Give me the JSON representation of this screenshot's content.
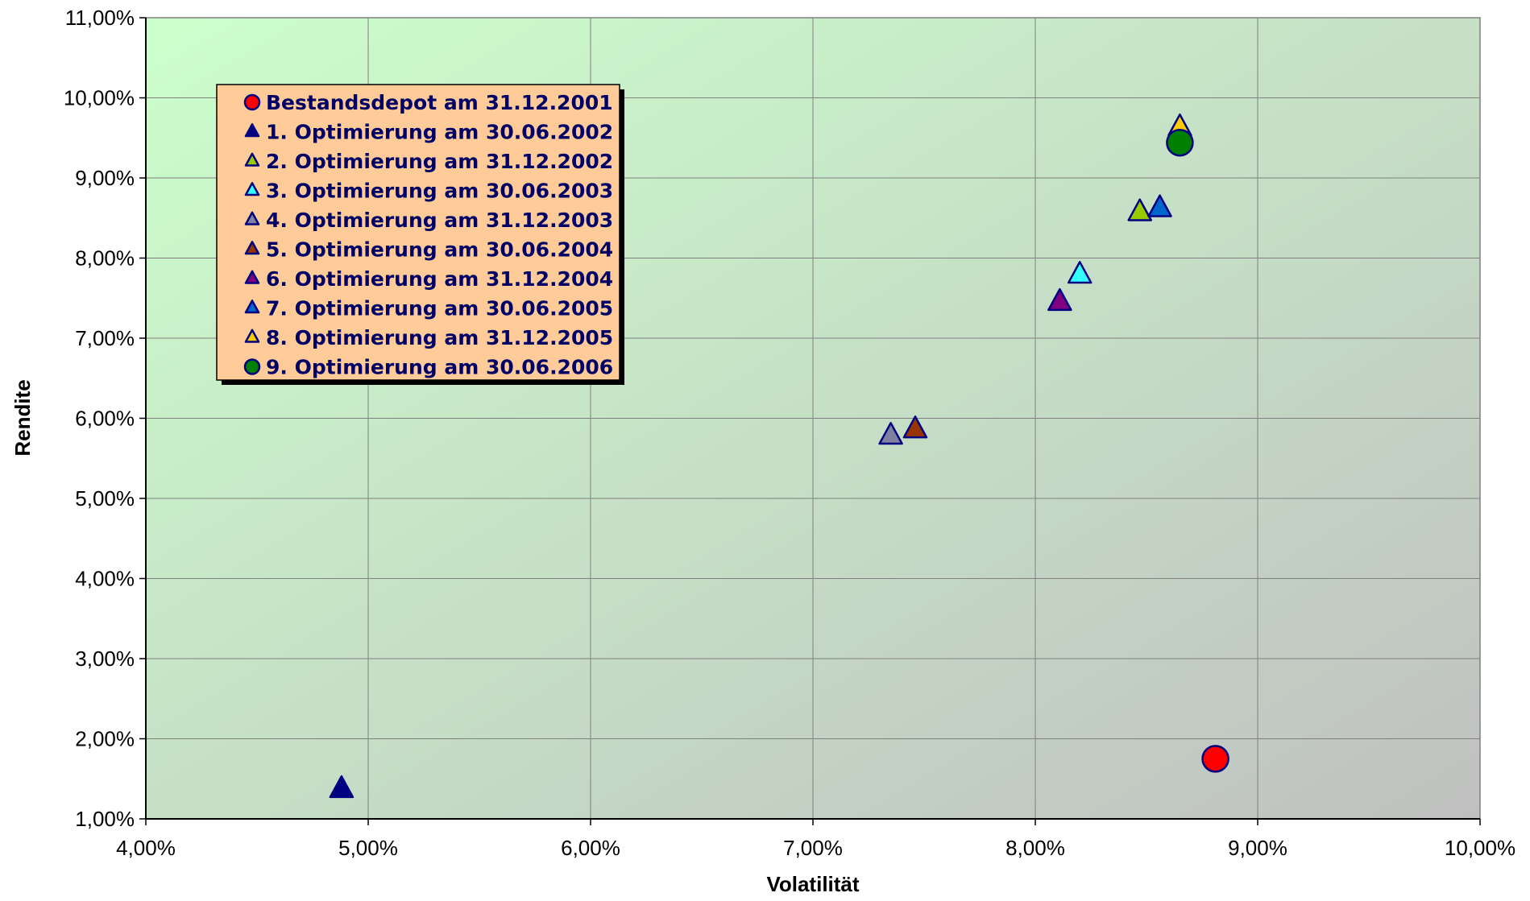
{
  "chart_data": {
    "type": "scatter",
    "xlabel": "Volatilität",
    "ylabel": "Rendite",
    "xlim": [
      0.04,
      0.1
    ],
    "ylim": [
      0.01,
      0.11
    ],
    "x_ticks": [
      "4,00%",
      "5,00%",
      "6,00%",
      "7,00%",
      "8,00%",
      "9,00%",
      "10,00%"
    ],
    "y_ticks": [
      "1,00%",
      "2,00%",
      "3,00%",
      "4,00%",
      "5,00%",
      "6,00%",
      "7,00%",
      "8,00%",
      "9,00%",
      "10,00%",
      "11,00%"
    ],
    "grid": true,
    "legend_position": "top-left",
    "series": [
      {
        "name": "Bestandsdepot am 31.12.2001",
        "marker": "circle",
        "color": "#ff0000",
        "x": 0.0881,
        "y": 0.0175
      },
      {
        "name": "1. Optimierung am 30.06.2002",
        "marker": "triangle",
        "color": "#000080",
        "x": 0.0488,
        "y": 0.0137
      },
      {
        "name": "2. Optimierung am 31.12.2002",
        "marker": "triangle",
        "color": "#99cc00",
        "x": 0.0847,
        "y": 0.0857
      },
      {
        "name": "3. Optimierung am 30.06.2003",
        "marker": "triangle",
        "color": "#33ffff",
        "x": 0.082,
        "y": 0.0779
      },
      {
        "name": "4. Optimierung am 31.12.2003",
        "marker": "triangle",
        "color": "#8080a0",
        "x": 0.0735,
        "y": 0.0578
      },
      {
        "name": "5. Optimierung am 30.06.2004",
        "marker": "triangle",
        "color": "#993300",
        "x": 0.0746,
        "y": 0.0586
      },
      {
        "name": "6. Optimierung am 31.12.2004",
        "marker": "triangle",
        "color": "#800080",
        "x": 0.0811,
        "y": 0.0745
      },
      {
        "name": "7. Optimierung am 30.06.2005",
        "marker": "triangle",
        "color": "#0066cc",
        "x": 0.0856,
        "y": 0.0862
      },
      {
        "name": "8. Optimierung am 31.12.2005",
        "marker": "triangle",
        "color": "#ffcc00",
        "x": 0.0865,
        "y": 0.0963
      },
      {
        "name": "9. Optimierung am 30.06.2006",
        "marker": "circle",
        "color": "#008000",
        "x": 0.0865,
        "y": 0.0944
      }
    ],
    "colors": {
      "plot_gradient_start": "#ccffcc",
      "plot_gradient_end": "#c0c0c0",
      "legend_background": "#ffcc99",
      "legend_text": "#000066",
      "marker_outline": "#000080",
      "grid": "#808080"
    }
  }
}
